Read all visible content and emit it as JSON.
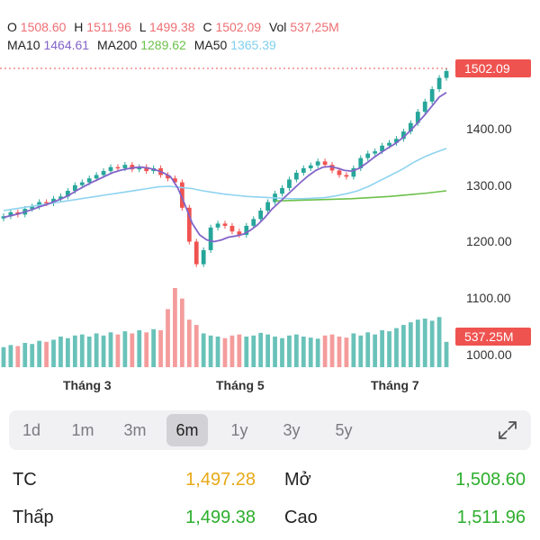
{
  "header": {
    "open_label": "O",
    "open_value": "1508.60",
    "high_label": "H",
    "high_value": "1511.96",
    "low_label": "L",
    "low_value": "1499.38",
    "close_label": "C",
    "close_value": "1502.09",
    "vol_label": "Vol",
    "vol_value": "537,25M",
    "ma10_label": "MA10",
    "ma10_value": "1464.61",
    "ma200_label": "MA200",
    "ma200_value": "1289.62",
    "ma50_label": "MA50",
    "ma50_value": "1365.39"
  },
  "colors": {
    "up": "#26a69a",
    "down": "#ef5350",
    "ma10": "#8264c8",
    "ma200": "#6cc04a",
    "ma50": "#8fd3f0",
    "grid_dotted_price": "#ef5350"
  },
  "chart_data": {
    "type": "candlestick",
    "y_ticks": [
      "1400.00",
      "1300.00",
      "1200.00",
      "1100.00",
      "1000.00"
    ],
    "y_tick_values": [
      1400,
      1300,
      1200,
      1100,
      1000
    ],
    "x_labels": [
      "Tháng 3",
      "Tháng 5",
      "Tháng 7"
    ],
    "last_price_tag": "1502.09",
    "last_price": 1502.09,
    "volume_tag": "537.25M",
    "price_series": [
      1245,
      1252,
      1248,
      1258,
      1262,
      1270,
      1268,
      1276,
      1280,
      1290,
      1300,
      1305,
      1312,
      1318,
      1325,
      1332,
      1330,
      1336,
      1328,
      1332,
      1325,
      1330,
      1318,
      1312,
      1305,
      1260,
      1200,
      1160,
      1185,
      1225,
      1232,
      1228,
      1218,
      1212,
      1228,
      1240,
      1255,
      1270,
      1285,
      1295,
      1310,
      1322,
      1330,
      1335,
      1342,
      1336,
      1326,
      1318,
      1315,
      1330,
      1348,
      1356,
      1360,
      1370,
      1375,
      1382,
      1395,
      1410,
      1430,
      1448,
      1470,
      1490,
      1502
    ],
    "ma10_series": [
      1243,
      1246,
      1249,
      1253,
      1257,
      1262,
      1266,
      1271,
      1276,
      1282,
      1290,
      1297,
      1304,
      1310,
      1316,
      1322,
      1326,
      1329,
      1331,
      1332,
      1330,
      1327,
      1322,
      1315,
      1295,
      1265,
      1232,
      1212,
      1203,
      1200,
      1203,
      1208,
      1210,
      1213,
      1220,
      1230,
      1243,
      1258,
      1270,
      1282,
      1294,
      1306,
      1317,
      1326,
      1332,
      1333,
      1330,
      1326,
      1325,
      1330,
      1339,
      1349,
      1358,
      1366,
      1374,
      1384,
      1396,
      1410,
      1424,
      1440,
      1456,
      1464
    ],
    "ma50_series": [
      1255,
      1258,
      1261,
      1264,
      1267,
      1270,
      1273,
      1276,
      1279,
      1282,
      1285,
      1288,
      1291,
      1294,
      1297,
      1298,
      1296,
      1294,
      1290,
      1287,
      1284,
      1282,
      1280,
      1279,
      1278,
      1277,
      1276,
      1276,
      1277,
      1278,
      1281,
      1285,
      1290,
      1298,
      1308,
      1318,
      1328,
      1340,
      1350,
      1358,
      1365
    ],
    "ma200_series": [
      1272,
      1273,
      1274,
      1275,
      1276,
      1278,
      1280,
      1283,
      1286,
      1290
    ],
    "volume_series": [
      38,
      42,
      40,
      46,
      44,
      50,
      48,
      52,
      58,
      55,
      60,
      62,
      58,
      64,
      60,
      66,
      62,
      68,
      64,
      70,
      66,
      72,
      70,
      110,
      150,
      130,
      90,
      80,
      64,
      60,
      58,
      55,
      60,
      62,
      58,
      60,
      65,
      62,
      58,
      55,
      60,
      62,
      58,
      56,
      54,
      60,
      62,
      58,
      56,
      64,
      60,
      66,
      62,
      70,
      68,
      74,
      80,
      85,
      90,
      92,
      88,
      95,
      48
    ]
  },
  "range_tabs": [
    "1d",
    "1m",
    "3m",
    "6m",
    "1y",
    "3y",
    "5y"
  ],
  "active_range": "6m",
  "stats": {
    "tc_label": "TC",
    "tc_value": "1,497.28",
    "open_label": "Mở",
    "open_value": "1,508.60",
    "low_label": "Thấp",
    "low_value": "1,499.38",
    "high_label": "Cao",
    "high_value": "1,511.96"
  }
}
